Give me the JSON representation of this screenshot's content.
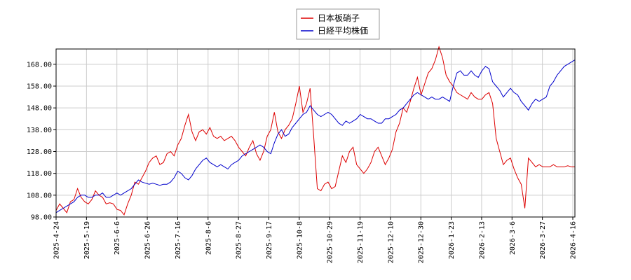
{
  "chart_data": {
    "type": "line",
    "title": "",
    "xlabel": "",
    "ylabel": "",
    "ylim": [
      98.0,
      175.0
    ],
    "yticks": [
      "98.00",
      "108.00",
      "118.00",
      "128.00",
      "138.00",
      "148.00",
      "158.00",
      "168.00"
    ],
    "ytick_values": [
      98,
      108,
      118,
      128,
      138,
      148,
      158,
      168
    ],
    "xtick_labels": [
      "2025-4-24",
      "2025-5-19",
      "2025-6-6",
      "2025-6-26",
      "2025-7-16",
      "2025-8-6",
      "2025-8-27",
      "2025-9-17",
      "2025-10-8",
      "2025-10-29",
      "2025-11-19",
      "2025-12-10",
      "2025-12-30",
      "2026-1-23",
      "2026-2-13",
      "2026-3-6",
      "2026-3-27",
      "2026-4-16"
    ],
    "grid": true,
    "legend_position": "top-center",
    "series": [
      {
        "name": "日本板硝子",
        "color": "#dd0000",
        "values": [
          101.0,
          104.0,
          102.0,
          100.0,
          105.0,
          106.0,
          111.0,
          107.0,
          105.0,
          104.0,
          106.0,
          110.0,
          108.0,
          107.0,
          104.0,
          104.5,
          104.0,
          101.5,
          101.0,
          99.0,
          104.0,
          108.0,
          114.0,
          113.0,
          116.0,
          119.0,
          123.0,
          125.0,
          126.0,
          122.0,
          123.0,
          127.0,
          128.0,
          126.0,
          131.0,
          134.0,
          140.0,
          145.0,
          137.0,
          133.0,
          137.0,
          138.0,
          136.0,
          139.0,
          135.0,
          134.0,
          135.0,
          133.0,
          134.0,
          135.0,
          133.0,
          130.0,
          128.0,
          126.0,
          130.0,
          133.0,
          127.0,
          124.0,
          128.0,
          135.0,
          138.0,
          146.0,
          137.0,
          134.0,
          138.0,
          140.0,
          143.0,
          150.0,
          158.0,
          146.0,
          150.0,
          157.0,
          135.0,
          111.0,
          110.0,
          113.0,
          114.0,
          111.0,
          112.0,
          119.0,
          126.0,
          123.0,
          128.0,
          130.0,
          122.0,
          120.0,
          118.0,
          120.0,
          123.0,
          128.0,
          130.0,
          126.0,
          122.0,
          125.0,
          129.0,
          137.0,
          141.0,
          148.0,
          146.0,
          151.0,
          157.0,
          162.0,
          154.0,
          159.0,
          164.0,
          166.0,
          170.0,
          176.0,
          171.0,
          163.0,
          160.0,
          158.0,
          155.0,
          154.0,
          153.0,
          152.0,
          155.0,
          153.0,
          152.0,
          152.0,
          154.0,
          155.0,
          150.0,
          134.0,
          128.0,
          122.0,
          124.0,
          125.0,
          120.0,
          116.0,
          113.0,
          102.0,
          125.0,
          123.0,
          121.0,
          122.0,
          121.0,
          121.0,
          121.0,
          122.0,
          121.0,
          121.0,
          121.0,
          121.5,
          121.0,
          121.0
        ]
      },
      {
        "name": "日経平均株価",
        "color": "#0000cc",
        "values": [
          100.0,
          101.0,
          102.0,
          103.0,
          104.0,
          105.0,
          107.0,
          108.0,
          108.0,
          107.0,
          107.0,
          108.0,
          108.0,
          109.0,
          107.0,
          107.0,
          108.0,
          109.0,
          108.0,
          109.0,
          110.0,
          111.0,
          113.0,
          115.0,
          114.0,
          113.5,
          113.0,
          113.5,
          113.0,
          112.5,
          113.0,
          113.0,
          114.0,
          116.0,
          119.0,
          118.0,
          116.0,
          115.0,
          117.0,
          120.0,
          122.0,
          124.0,
          125.0,
          123.0,
          122.0,
          121.0,
          122.0,
          121.0,
          120.0,
          122.0,
          123.0,
          124.0,
          126.0,
          127.0,
          128.0,
          129.0,
          130.0,
          131.0,
          130.0,
          128.0,
          127.0,
          132.0,
          136.0,
          138.0,
          135.0,
          136.0,
          139.0,
          141.0,
          143.0,
          145.0,
          146.0,
          149.0,
          147.0,
          145.0,
          144.0,
          145.0,
          146.0,
          145.0,
          143.0,
          141.0,
          140.0,
          142.0,
          141.0,
          142.0,
          143.0,
          145.0,
          144.0,
          143.0,
          143.0,
          142.0,
          141.0,
          141.0,
          143.0,
          143.0,
          144.0,
          145.0,
          147.0,
          148.0,
          150.0,
          152.0,
          154.0,
          155.0,
          154.0,
          153.0,
          152.0,
          153.0,
          152.0,
          152.0,
          153.0,
          152.0,
          151.0,
          158.0,
          164.0,
          165.0,
          163.0,
          163.0,
          165.0,
          163.0,
          162.0,
          165.0,
          167.0,
          166.0,
          160.0,
          158.0,
          156.0,
          153.0,
          155.0,
          157.0,
          155.0,
          154.0,
          151.0,
          149.0,
          147.0,
          150.0,
          152.0,
          151.0,
          152.0,
          153.0,
          158.0,
          160.0,
          163.0,
          165.0,
          167.0,
          168.0,
          169.0,
          170.0
        ]
      }
    ]
  }
}
